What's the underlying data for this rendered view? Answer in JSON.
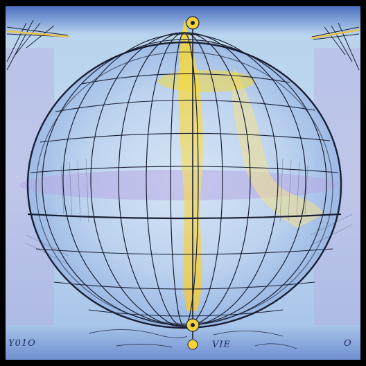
{
  "artwork": {
    "subject": "globe-sketch",
    "palette": {
      "sky": "#b9d4ee",
      "sky_dark": "#3f64b3",
      "glow": "#f3d23a",
      "line": "#1a1f33",
      "lavender": "#b6a6dc"
    },
    "captions": {
      "left": "Y01O",
      "center": "VIE",
      "right": "O"
    }
  }
}
